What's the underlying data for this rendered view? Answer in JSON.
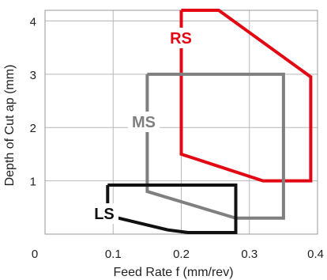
{
  "chart_data": {
    "type": "area",
    "xlabel": "Feed Rate f (mm/rev)",
    "ylabel": "Depth of Cut ap (mm)",
    "xlim": [
      0,
      0.4
    ],
    "ylim": [
      0,
      4.2
    ],
    "x_ticks": [
      "0",
      "0.1",
      "0.2",
      "0.3",
      "0.4"
    ],
    "y_ticks": [
      "1",
      "2",
      "3",
      "4"
    ],
    "x_tick_values": [
      0,
      0.1,
      0.2,
      0.3,
      0.4
    ],
    "y_tick_values": [
      1,
      2,
      3,
      4
    ],
    "grid": true,
    "series": [
      {
        "name": "RS",
        "color": "#e30613",
        "points": [
          [
            0.2,
            4.2
          ],
          [
            0.255,
            4.2
          ],
          [
            0.39,
            2.95
          ],
          [
            0.39,
            1.0
          ],
          [
            0.32,
            1.0
          ],
          [
            0.2,
            1.5
          ],
          [
            0.2,
            4.2
          ]
        ]
      },
      {
        "name": "MS",
        "color": "#7f7f7f",
        "points": [
          [
            0.15,
            3.0
          ],
          [
            0.35,
            3.0
          ],
          [
            0.35,
            0.3
          ],
          [
            0.28,
            0.3
          ],
          [
            0.15,
            0.8
          ],
          [
            0.15,
            3.0
          ]
        ]
      },
      {
        "name": "LS",
        "color": "#111111",
        "points": [
          [
            0.092,
            0.92
          ],
          [
            0.28,
            0.92
          ],
          [
            0.28,
            0.03
          ],
          [
            0.21,
            0.03
          ],
          [
            0.18,
            0.08
          ],
          [
            0.092,
            0.35
          ],
          [
            0.092,
            0.92
          ]
        ]
      }
    ]
  }
}
